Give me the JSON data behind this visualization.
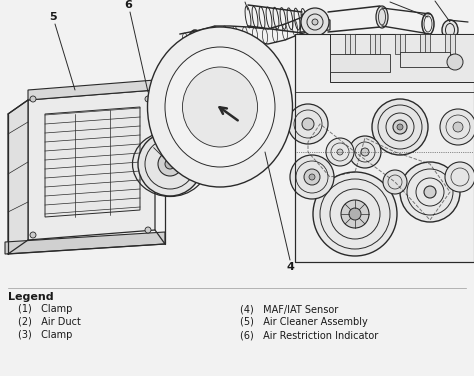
{
  "background_color": "#f2f2f2",
  "legend_title": "Legend",
  "legend_items_left": [
    "(1)   Clamp",
    "(2)   Air Duct",
    "(3)   Clamp"
  ],
  "legend_items_right": [
    "(4)   MAF/IAT Sensor",
    "(5)   Air Cleaner Assembly",
    "(6)   Air Restriction Indicator"
  ],
  "figsize": [
    4.74,
    3.76
  ],
  "dpi": 100,
  "line_color": "#2a2a2a",
  "text_color": "#1a1a1a",
  "legend_font_size": 7.0,
  "legend_title_font_size": 8.0,
  "img_bg": "#f2f2f2"
}
